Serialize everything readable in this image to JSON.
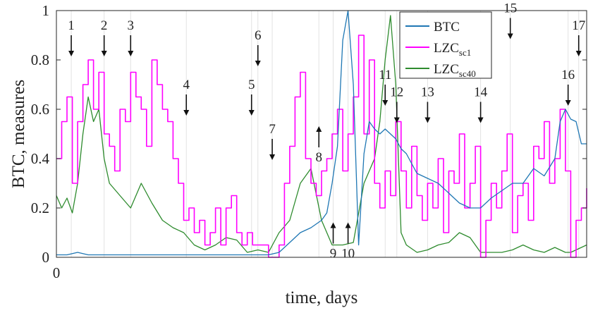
{
  "chart_data": {
    "type": "line",
    "xlabel": "time, days",
    "ylabel": "BTC, measures",
    "xlim": [
      0,
      100
    ],
    "ylim": [
      0,
      1
    ],
    "x_ticks": [
      0
    ],
    "y_ticks": [
      0,
      0.2,
      0.4,
      0.6,
      0.8,
      1
    ],
    "y_tick_labels": [
      "0",
      "0.2",
      "0.4",
      "0.6",
      "0.8",
      "1"
    ],
    "grid": "vertical lines at annotated events",
    "legend_position": "top-right",
    "legend": [
      {
        "label": "BTC",
        "sub": "",
        "color": "#1f77b4"
      },
      {
        "label": "LZC",
        "sub": "sc1",
        "color": "#ff00ff"
      },
      {
        "label": "LZC",
        "sub": "sc40",
        "color": "#2e8b2e"
      }
    ],
    "series": [
      {
        "name": "BTC",
        "color": "#1f77b4",
        "x": [
          0,
          2,
          4,
          6,
          8,
          10,
          15,
          20,
          25,
          30,
          35,
          40,
          42,
          44,
          46,
          48,
          50,
          51,
          52,
          53,
          54,
          55,
          56,
          57,
          58,
          59,
          60,
          61,
          62,
          63,
          64,
          65,
          66,
          67,
          68,
          70,
          72,
          74,
          76,
          78,
          80,
          82,
          84,
          86,
          88,
          90,
          92,
          94,
          95,
          96,
          97,
          98,
          99,
          100
        ],
        "values": [
          0.01,
          0.01,
          0.02,
          0.01,
          0.01,
          0.01,
          0.01,
          0.01,
          0.01,
          0.01,
          0.01,
          0.01,
          0.02,
          0.06,
          0.1,
          0.12,
          0.15,
          0.18,
          0.3,
          0.45,
          0.88,
          1.0,
          0.7,
          0.05,
          0.42,
          0.55,
          0.52,
          0.5,
          0.52,
          0.5,
          0.48,
          0.44,
          0.42,
          0.38,
          0.34,
          0.32,
          0.3,
          0.26,
          0.22,
          0.2,
          0.2,
          0.24,
          0.27,
          0.3,
          0.3,
          0.36,
          0.33,
          0.4,
          0.55,
          0.6,
          0.56,
          0.55,
          0.46,
          0.46
        ]
      },
      {
        "name": "LZC sc1",
        "color": "#ff00ff",
        "x": [
          0,
          1,
          2,
          3,
          4,
          5,
          6,
          7,
          8,
          9,
          10,
          11,
          12,
          13,
          14,
          15,
          16,
          17,
          18,
          19,
          20,
          21,
          22,
          23,
          24,
          25,
          26,
          27,
          28,
          29,
          30,
          31,
          32,
          33,
          34,
          35,
          36,
          37,
          38,
          39,
          40,
          41,
          42,
          43,
          44,
          45,
          46,
          47,
          48,
          49,
          50,
          51,
          52,
          53,
          54,
          55,
          56,
          57,
          58,
          59,
          60,
          61,
          62,
          63,
          64,
          65,
          66,
          67,
          68,
          69,
          70,
          71,
          72,
          73,
          74,
          75,
          76,
          77,
          78,
          79,
          80,
          81,
          82,
          83,
          84,
          85,
          86,
          87,
          88,
          89,
          90,
          91,
          92,
          93,
          94,
          95,
          96,
          97,
          98,
          99,
          100
        ],
        "values": [
          0.4,
          0.55,
          0.65,
          0.3,
          0.55,
          0.7,
          0.8,
          0.6,
          0.75,
          0.5,
          0.45,
          0.35,
          0.6,
          0.55,
          0.75,
          0.65,
          0.6,
          0.45,
          0.8,
          0.7,
          0.6,
          0.55,
          0.4,
          0.3,
          0.15,
          0.2,
          0.1,
          0.15,
          0.05,
          0.1,
          0.2,
          0.05,
          0.2,
          0.25,
          0.1,
          0.05,
          0.1,
          0.05,
          0.05,
          0.05,
          0.0,
          0.0,
          0.05,
          0.3,
          0.45,
          0.65,
          0.75,
          0.4,
          0.3,
          0.25,
          0.35,
          0.4,
          0.5,
          0.6,
          0.35,
          0.5,
          0.65,
          0.9,
          0.5,
          0.8,
          0.3,
          0.2,
          0.35,
          0.25,
          0.55,
          0.35,
          0.2,
          0.45,
          0.25,
          0.15,
          0.3,
          0.2,
          0.4,
          0.1,
          0.35,
          0.3,
          0.5,
          0.2,
          0.3,
          0.45,
          0.0,
          0.15,
          0.3,
          0.2,
          0.35,
          0.5,
          0.1,
          0.25,
          0.3,
          0.15,
          0.45,
          0.4,
          0.55,
          0.3,
          0.4,
          0.6,
          0.35,
          0.0,
          0.15,
          0.2,
          0.28
        ]
      },
      {
        "name": "LZC sc40",
        "color": "#2e8b2e",
        "x": [
          0,
          1,
          2,
          3,
          4,
          5,
          6,
          7,
          8,
          9,
          10,
          12,
          14,
          16,
          18,
          20,
          22,
          24,
          26,
          28,
          30,
          32,
          34,
          36,
          38,
          40,
          42,
          44,
          46,
          48,
          50,
          52,
          54,
          56,
          58,
          60,
          61,
          62,
          63,
          64,
          65,
          66,
          68,
          70,
          72,
          74,
          76,
          78,
          80,
          82,
          84,
          86,
          88,
          90,
          92,
          94,
          95,
          96,
          97,
          98,
          99,
          100
        ],
        "values": [
          0.25,
          0.2,
          0.24,
          0.18,
          0.3,
          0.5,
          0.65,
          0.55,
          0.6,
          0.4,
          0.3,
          0.25,
          0.2,
          0.3,
          0.22,
          0.15,
          0.12,
          0.1,
          0.05,
          0.03,
          0.05,
          0.08,
          0.07,
          0.02,
          0.03,
          0.02,
          0.1,
          0.15,
          0.3,
          0.36,
          0.15,
          0.05,
          0.05,
          0.06,
          0.3,
          0.4,
          0.55,
          0.8,
          0.98,
          0.7,
          0.1,
          0.05,
          0.02,
          0.03,
          0.05,
          0.06,
          0.1,
          0.08,
          0.02,
          0.02,
          0.02,
          0.03,
          0.05,
          0.03,
          0.02,
          0.04,
          0.03,
          0.02,
          0.02,
          0.03,
          0.04,
          0.05
        ]
      }
    ],
    "annotations": [
      {
        "label": "1",
        "x": 2.8,
        "y": 0.9,
        "dir": "down"
      },
      {
        "label": "2",
        "x": 9.0,
        "y": 0.9,
        "dir": "down"
      },
      {
        "label": "3",
        "x": 14.0,
        "y": 0.9,
        "dir": "down"
      },
      {
        "label": "4",
        "x": 24.5,
        "y": 0.66,
        "dir": "down"
      },
      {
        "label": "5",
        "x": 36.8,
        "y": 0.66,
        "dir": "down"
      },
      {
        "label": "6",
        "x": 38.0,
        "y": 0.86,
        "dir": "down"
      },
      {
        "label": "7",
        "x": 40.7,
        "y": 0.48,
        "dir": "down"
      },
      {
        "label": "8",
        "x": 49.5,
        "y": 0.44,
        "dir": "up"
      },
      {
        "label": "9",
        "x": 52.2,
        "y": 0.05,
        "dir": "up"
      },
      {
        "label": "10",
        "x": 55.0,
        "y": 0.05,
        "dir": "up"
      },
      {
        "label": "11",
        "x": 62.0,
        "y": 0.7,
        "dir": "down"
      },
      {
        "label": "12",
        "x": 64.2,
        "y": 0.63,
        "dir": "down"
      },
      {
        "label": "13",
        "x": 70.0,
        "y": 0.63,
        "dir": "down"
      },
      {
        "label": "14",
        "x": 80.0,
        "y": 0.63,
        "dir": "down"
      },
      {
        "label": "15",
        "x": 85.6,
        "y": 0.97,
        "dir": "down"
      },
      {
        "label": "16",
        "x": 96.5,
        "y": 0.7,
        "dir": "down"
      },
      {
        "label": "17",
        "x": 98.5,
        "y": 0.9,
        "dir": "down"
      }
    ],
    "grid_x": [
      2.8,
      9.0,
      14.0,
      24.5,
      36.8,
      38.0,
      40.7,
      49.5,
      52.2,
      55.0,
      62.0,
      64.2,
      70.0,
      80.0,
      85.6,
      96.5,
      98.5
    ]
  }
}
